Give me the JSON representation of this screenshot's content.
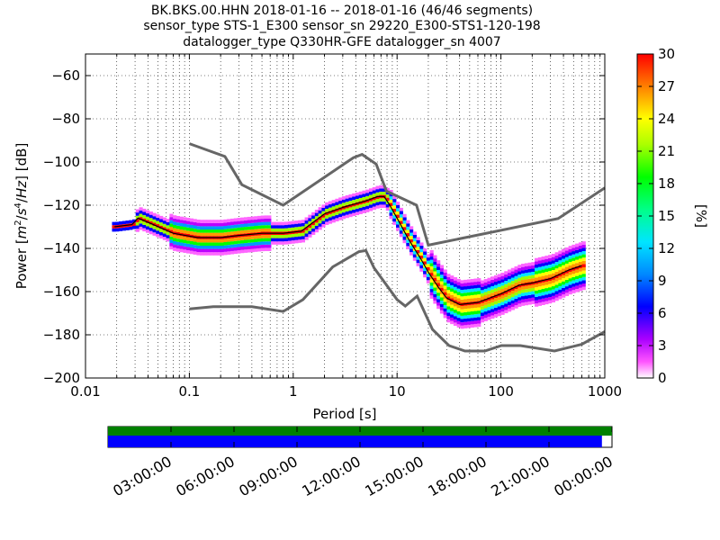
{
  "chart_data": {
    "type": "heatmap",
    "title_lines": [
      "BK.BKS.00.HHN   2018-01-16 -- 2018-01-16  (46/46 segments)",
      "sensor_type STS-1_E300 sensor_sn 29220_E300-STS1-120-198",
      "datalogger_type Q330HR-GFE datalogger_sn 4007"
    ],
    "xlabel": "Period [s]",
    "ylabel_parts": [
      "Power [",
      "m",
      "2",
      "/",
      "s",
      "4",
      "/",
      "Hz",
      "] [dB]"
    ],
    "x_scale": "log",
    "xlim": [
      0.01,
      1000
    ],
    "ylim": [
      -200,
      -50
    ],
    "x_tick_labels": [
      {
        "value": 0.01,
        "label": "0.01"
      },
      {
        "value": 0.1,
        "label": "0.1"
      },
      {
        "value": 1,
        "label": "1"
      },
      {
        "value": 10,
        "label": "10"
      },
      {
        "value": 100,
        "label": "100"
      },
      {
        "value": 1000,
        "label": "1000"
      }
    ],
    "y_tick_labels": [
      {
        "value": -60,
        "label": "−60"
      },
      {
        "value": -80,
        "label": "−80"
      },
      {
        "value": -100,
        "label": "−100"
      },
      {
        "value": -120,
        "label": "−120"
      },
      {
        "value": -140,
        "label": "−140"
      },
      {
        "value": -160,
        "label": "−160"
      },
      {
        "value": -180,
        "label": "−180"
      },
      {
        "value": -200,
        "label": "−200"
      }
    ],
    "grid": "dotted",
    "colorbar": {
      "label": "[%]",
      "range": [
        0,
        30
      ],
      "tick_labels": [
        {
          "value": 0,
          "label": "0"
        },
        {
          "value": 3,
          "label": "3"
        },
        {
          "value": 6,
          "label": "6"
        },
        {
          "value": 9,
          "label": "9"
        },
        {
          "value": 12,
          "label": "12"
        },
        {
          "value": 15,
          "label": "15"
        },
        {
          "value": 18,
          "label": "18"
        },
        {
          "value": 21,
          "label": "21"
        },
        {
          "value": 24,
          "label": "24"
        },
        {
          "value": 27,
          "label": "27"
        },
        {
          "value": 30,
          "label": "30"
        }
      ]
    },
    "noise_models": [
      {
        "points": [
          [
            0.1,
            -91.5
          ],
          [
            0.22,
            -97.4
          ],
          [
            0.32,
            -110.5
          ],
          [
            0.8,
            -120
          ],
          [
            3.8,
            -98
          ],
          [
            4.6,
            -96.5
          ],
          [
            6.3,
            -101
          ],
          [
            7.9,
            -113.5
          ],
          [
            15.4,
            -120
          ],
          [
            20,
            -138.5
          ],
          [
            354.8,
            -126.2
          ],
          [
            1000,
            -112
          ]
        ]
      },
      {
        "points": [
          [
            0.1,
            -168
          ],
          [
            0.17,
            -167
          ],
          [
            0.4,
            -167
          ],
          [
            0.8,
            -169.2
          ],
          [
            1.24,
            -163.7
          ],
          [
            2.4,
            -148.6
          ],
          [
            4.3,
            -141.5
          ],
          [
            5,
            -141
          ],
          [
            6,
            -149
          ],
          [
            10,
            -163.7
          ],
          [
            12,
            -166.7
          ],
          [
            15.6,
            -162.1
          ],
          [
            21.9,
            -177.5
          ],
          [
            31.6,
            -185
          ],
          [
            45,
            -187.5
          ],
          [
            70,
            -187.5
          ],
          [
            101,
            -185
          ],
          [
            154,
            -185
          ],
          [
            328,
            -187.5
          ],
          [
            600,
            -184.4
          ],
          [
            1000,
            -178.5
          ]
        ]
      }
    ],
    "mode_line": {
      "points": [
        [
          0.019,
          -130
        ],
        [
          0.028,
          -129
        ],
        [
          0.032,
          -126
        ],
        [
          0.045,
          -129
        ],
        [
          0.07,
          -133
        ],
        [
          0.12,
          -135
        ],
        [
          0.2,
          -135
        ],
        [
          0.3,
          -134
        ],
        [
          0.5,
          -133
        ],
        [
          0.8,
          -133
        ],
        [
          1.2,
          -132
        ],
        [
          2,
          -124
        ],
        [
          3,
          -121
        ],
        [
          5,
          -118
        ],
        [
          6.5,
          -116
        ],
        [
          7.5,
          -116
        ],
        [
          8.5,
          -120
        ],
        [
          10,
          -126
        ],
        [
          13,
          -136
        ],
        [
          17,
          -145
        ],
        [
          20,
          -151
        ],
        [
          25,
          -158
        ],
        [
          30,
          -163
        ],
        [
          40,
          -166
        ],
        [
          60,
          -165
        ],
        [
          100,
          -161
        ],
        [
          150,
          -157
        ],
        [
          200,
          -156
        ],
        [
          300,
          -154
        ],
        [
          450,
          -150
        ],
        [
          600,
          -148
        ]
      ]
    },
    "time_axis": {
      "tick_labels": [
        "03:00:00",
        "06:00:00",
        "09:00:00",
        "12:00:00",
        "15:00:00",
        "18:00:00",
        "21:00:00",
        "00:00:00"
      ],
      "data_coverage_fraction": 0.98,
      "colors": {
        "bar": "#008000",
        "coverage": "#0000ff"
      }
    }
  }
}
